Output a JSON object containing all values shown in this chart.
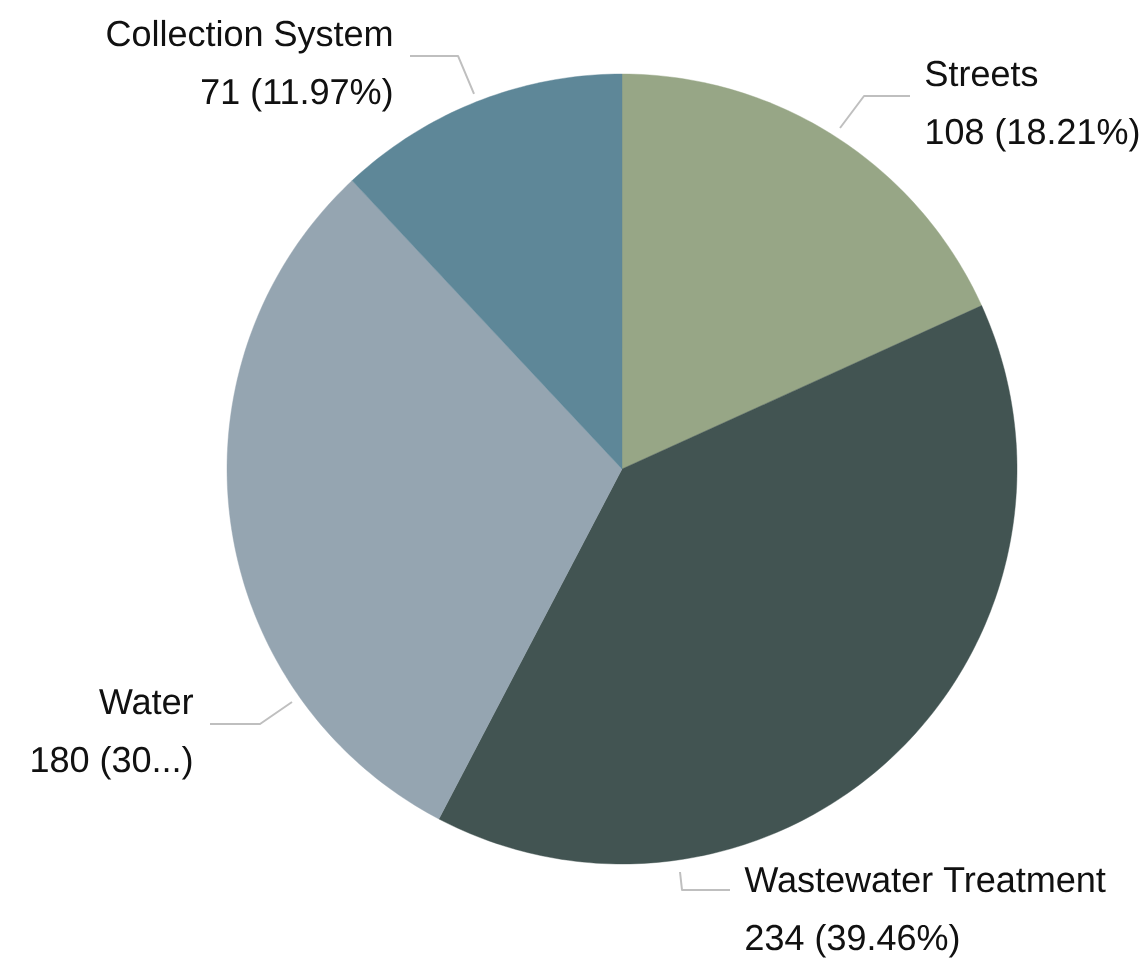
{
  "chart_data": {
    "type": "pie",
    "categories": [
      "Streets",
      "Wastewater Treatment",
      "Water",
      "Collection System"
    ],
    "values": [
      108,
      234,
      180,
      71
    ],
    "colors": [
      "#97a686",
      "#425452",
      "#95a5b1",
      "#5e8798"
    ],
    "value_labels": [
      "108 (18.21%)",
      "234 (39.46%)",
      "180 (30...)",
      "71 (11.97%)"
    ]
  }
}
